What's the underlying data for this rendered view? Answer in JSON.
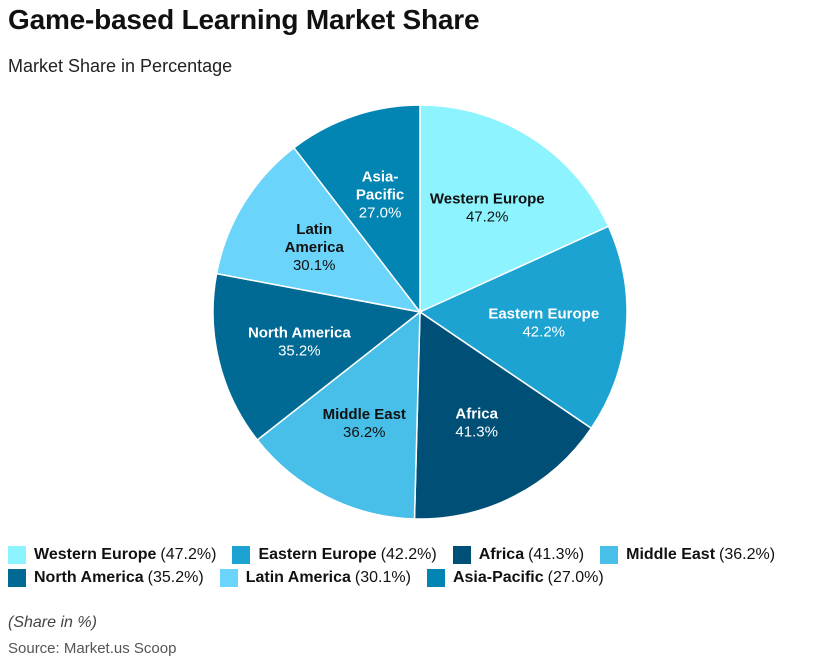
{
  "title": "Game-based Learning Market Share",
  "subtitle": "Market Share in Percentage",
  "note": "(Share in %)",
  "source": "Source: Market.us Scoop",
  "chart_data": {
    "type": "pie",
    "title": "Game-based Learning Market Share",
    "subtitle": "Market Share in Percentage",
    "unit": "%",
    "slices": [
      {
        "name": "Western Europe",
        "label_lines": [
          "Western Europe"
        ],
        "value": 47.2,
        "value_text": "47.2%",
        "color": "#8cf3ff",
        "text_color": "#111111"
      },
      {
        "name": "Eastern Europe",
        "label_lines": [
          "Eastern Europe"
        ],
        "value": 42.2,
        "value_text": "42.2%",
        "color": "#1ca3d1",
        "text_color": "#ffffff"
      },
      {
        "name": "Africa",
        "label_lines": [
          "Africa"
        ],
        "value": 41.3,
        "value_text": "41.3%",
        "color": "#004f76",
        "text_color": "#ffffff"
      },
      {
        "name": "Middle East",
        "label_lines": [
          "Middle East"
        ],
        "value": 36.2,
        "value_text": "36.2%",
        "color": "#48bfe8",
        "text_color": "#111111"
      },
      {
        "name": "North America",
        "label_lines": [
          "North America"
        ],
        "value": 35.2,
        "value_text": "35.2%",
        "color": "#006a95",
        "text_color": "#ffffff"
      },
      {
        "name": "Latin America",
        "label_lines": [
          "Latin",
          "America"
        ],
        "value": 30.1,
        "value_text": "30.1%",
        "color": "#6ad4fa",
        "text_color": "#111111"
      },
      {
        "name": "Asia-Pacific",
        "label_lines": [
          "Asia-",
          "Pacific"
        ],
        "value": 27.0,
        "value_text": "27.0%",
        "color": "#0385b3",
        "text_color": "#ffffff"
      }
    ],
    "legend": {
      "placement": "bottom",
      "rows": [
        [
          {
            "name": "Western Europe",
            "value_text": "(47.2%)",
            "color": "#8cf3ff"
          },
          {
            "name": "Eastern Europe",
            "value_text": "(42.2%)",
            "color": "#1ca3d1"
          },
          {
            "name": "Africa",
            "value_text": "(41.3%)",
            "color": "#004f76"
          },
          {
            "name": "Middle East",
            "value_text": "(36.2%)",
            "color": "#48bfe8"
          }
        ],
        [
          {
            "name": "North America",
            "value_text": "(35.2%)",
            "color": "#006a95"
          },
          {
            "name": "Latin America",
            "value_text": "(30.1%)",
            "color": "#6ad4fa"
          },
          {
            "name": "Asia-Pacific",
            "value_text": "(27.0%)",
            "color": "#0385b3"
          }
        ]
      ]
    }
  }
}
